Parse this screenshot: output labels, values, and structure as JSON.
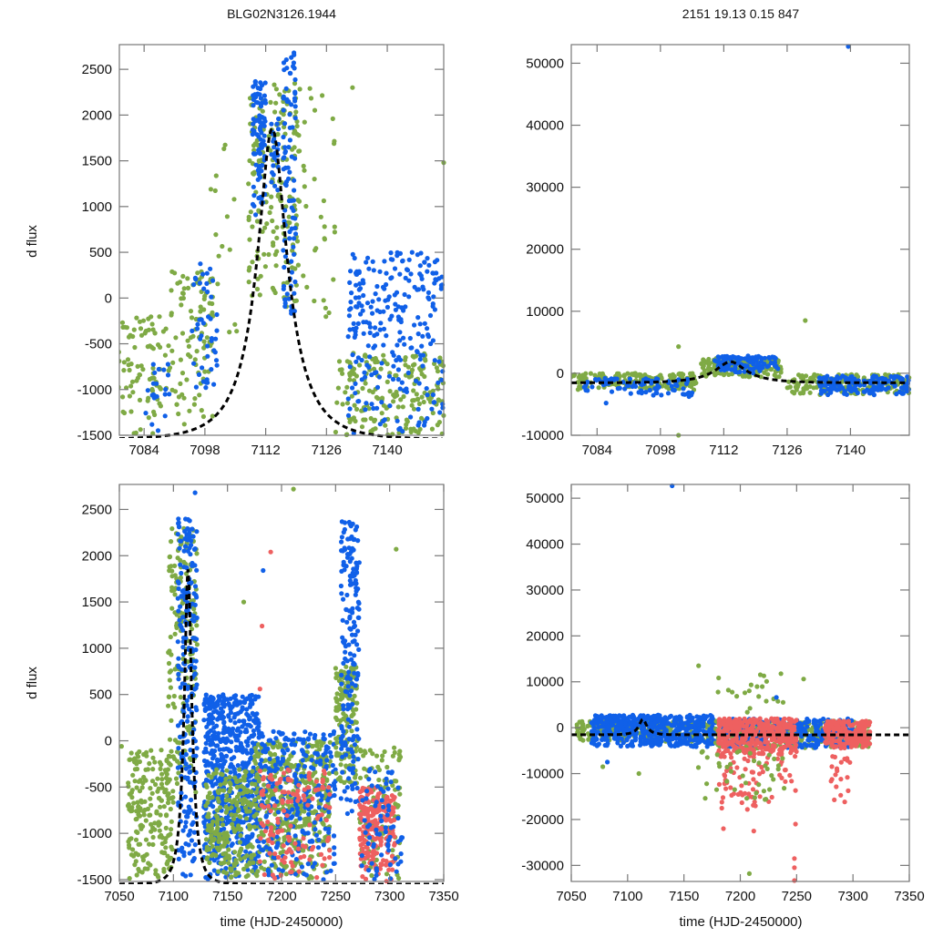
{
  "figure": {
    "title_left": "BLG02N3126.1944",
    "title_right": "2151  19.13  0.15  847"
  },
  "colors": {
    "green": "#7faa45",
    "blue": "#1060e8",
    "red": "#ee6060",
    "model": "#000000",
    "frame": "#777777"
  },
  "model": {
    "t0": 7113.5,
    "tE": 9.5,
    "u0": 0.35,
    "amp": 1850,
    "base": -1550
  },
  "chart_data": [
    {
      "id": "top-left",
      "type": "scatter",
      "title": "BLG02N3126.1944",
      "xlabel": "",
      "ylabel": "d flux",
      "xlim": [
        7078.3,
        7153
      ],
      "ylim": [
        -1500,
        2770
      ],
      "xticks": [
        7084,
        7098,
        7112,
        7126,
        7140
      ],
      "yticks": [
        -1500,
        -1000,
        -500,
        0,
        500,
        1000,
        1500,
        2000,
        2500
      ],
      "clusters": [
        {
          "series": "green",
          "x": [
            7078,
            7090
          ],
          "y": [
            -1500,
            -200
          ],
          "n": 90
        },
        {
          "series": "green",
          "x": [
            7090,
            7100
          ],
          "y": [
            -1400,
            300
          ],
          "n": 90
        },
        {
          "series": "green",
          "x": [
            7099,
            7106
          ],
          "y": [
            -700,
            1800
          ],
          "n": 20
        },
        {
          "series": "blue",
          "x": [
            7084,
            7090
          ],
          "y": [
            -1500,
            -700
          ],
          "n": 20
        },
        {
          "series": "blue",
          "x": [
            7095,
            7101
          ],
          "y": [
            -1000,
            400
          ],
          "n": 45
        },
        {
          "series": "green",
          "x": [
            7108,
            7120
          ],
          "y": [
            -100,
            2350
          ],
          "n": 180
        },
        {
          "series": "blue",
          "x": [
            7109,
            7112
          ],
          "y": [
            900,
            2400
          ],
          "n": 90
        },
        {
          "series": "blue",
          "x": [
            7113,
            7115
          ],
          "y": [
            1100,
            2000
          ],
          "n": 25
        },
        {
          "series": "blue",
          "x": [
            7116,
            7119
          ],
          "y": [
            -200,
            2700
          ],
          "n": 90
        },
        {
          "series": "green",
          "x": [
            7120,
            7128
          ],
          "y": [
            -500,
            2300
          ],
          "n": 30
        },
        {
          "series": "green",
          "x": [
            7128,
            7153
          ],
          "y": [
            -1500,
            -600
          ],
          "n": 190
        },
        {
          "series": "blue",
          "x": [
            7131,
            7153
          ],
          "y": [
            -1500,
            500
          ],
          "n": 260
        }
      ],
      "isolated_points": [
        {
          "series": "blue",
          "x": 7118.5,
          "y": 2680
        },
        {
          "series": "green",
          "x": 7132,
          "y": 2300
        },
        {
          "series": "green",
          "x": 7153,
          "y": 1480
        }
      ]
    },
    {
      "id": "top-right",
      "type": "scatter",
      "title": "2151  19.13  0.15  847",
      "xlabel": "",
      "ylabel": "",
      "xlim": [
        7078.3,
        7153
      ],
      "ylim": [
        -10000,
        53000
      ],
      "xticks": [
        7084,
        7098,
        7112,
        7126,
        7140
      ],
      "yticks": [
        -10000,
        0,
        10000,
        20000,
        30000,
        40000,
        50000
      ],
      "clusters": [
        {
          "series": "green",
          "x": [
            7078,
            7106
          ],
          "y": [
            -2700,
            0
          ],
          "n": 180
        },
        {
          "series": "blue",
          "x": [
            7081,
            7105
          ],
          "y": [
            -3800,
            -800
          ],
          "n": 90
        },
        {
          "series": "green",
          "x": [
            7107,
            7125
          ],
          "y": [
            -600,
            2400
          ],
          "n": 160
        },
        {
          "series": "blue",
          "x": [
            7110,
            7124
          ],
          "y": [
            0,
            2800
          ],
          "n": 110
        },
        {
          "series": "green",
          "x": [
            7126,
            7153
          ],
          "y": [
            -3500,
            -200
          ],
          "n": 180
        },
        {
          "series": "blue",
          "x": [
            7133,
            7153
          ],
          "y": [
            -3500,
            -400
          ],
          "n": 170
        }
      ],
      "isolated_points": [
        {
          "series": "blue",
          "x": 7139.5,
          "y": 52700
        },
        {
          "series": "green",
          "x": 7130,
          "y": 8500
        },
        {
          "series": "green",
          "x": 7102,
          "y": 4300
        },
        {
          "series": "green",
          "x": 7102,
          "y": -10000
        },
        {
          "series": "blue",
          "x": 7086,
          "y": -4800
        }
      ]
    },
    {
      "id": "bottom-left",
      "type": "scatter",
      "title": "",
      "xlabel": "time (HJD-2450000)",
      "ylabel": "d flux",
      "xlim": [
        7050,
        7350
      ],
      "ylim": [
        -1520,
        2770
      ],
      "xticks": [
        7050,
        7100,
        7150,
        7200,
        7250,
        7300,
        7350
      ],
      "yticks": [
        -1500,
        -1000,
        -500,
        0,
        500,
        1000,
        1500,
        2000,
        2500
      ],
      "clusters": [
        {
          "series": "green",
          "x": [
            7058,
            7100
          ],
          "y": [
            -1500,
            -100
          ],
          "n": 200
        },
        {
          "series": "green",
          "x": [
            7095,
            7122
          ],
          "y": [
            -600,
            2300
          ],
          "n": 170
        },
        {
          "series": "blue",
          "x": [
            7104,
            7122
          ],
          "y": [
            -1500,
            2400
          ],
          "n": 230
        },
        {
          "series": "blue",
          "x": [
            7128,
            7180
          ],
          "y": [
            -1500,
            500
          ],
          "n": 650
        },
        {
          "series": "green",
          "x": [
            7130,
            7175
          ],
          "y": [
            -1500,
            -300
          ],
          "n": 220
        },
        {
          "series": "green",
          "x": [
            7175,
            7245
          ],
          "y": [
            -1500,
            0
          ],
          "n": 450
        },
        {
          "series": "blue",
          "x": [
            7180,
            7250
          ],
          "y": [
            -1500,
            100
          ],
          "n": 280
        },
        {
          "series": "red",
          "x": [
            7180,
            7245
          ],
          "y": [
            -1520,
            -300
          ],
          "n": 130
        },
        {
          "series": "green",
          "x": [
            7250,
            7270
          ],
          "y": [
            -500,
            800
          ],
          "n": 150
        },
        {
          "series": "blue",
          "x": [
            7255,
            7272
          ],
          "y": [
            -800,
            2400
          ],
          "n": 180
        },
        {
          "series": "green",
          "x": [
            7272,
            7310
          ],
          "y": [
            -1500,
            0
          ],
          "n": 110
        },
        {
          "series": "red",
          "x": [
            7272,
            7305
          ],
          "y": [
            -1520,
            -500
          ],
          "n": 230
        },
        {
          "series": "blue",
          "x": [
            7272,
            7312
          ],
          "y": [
            -1500,
            -300
          ],
          "n": 70
        }
      ],
      "isolated_points": [
        {
          "series": "blue",
          "x": 7120,
          "y": 2680
        },
        {
          "series": "green",
          "x": 7211,
          "y": 2720
        },
        {
          "series": "green",
          "x": 7306,
          "y": 2070
        },
        {
          "series": "red",
          "x": 7190,
          "y": 2040
        },
        {
          "series": "red",
          "x": 7182,
          "y": 1240
        },
        {
          "series": "red",
          "x": 7180,
          "y": 560
        },
        {
          "series": "green",
          "x": 7052,
          "y": -60
        },
        {
          "series": "green",
          "x": 7165,
          "y": 1500
        },
        {
          "series": "blue",
          "x": 7183,
          "y": 1840
        }
      ]
    },
    {
      "id": "bottom-right",
      "type": "scatter",
      "title": "",
      "xlabel": "time (HJD-2450000)",
      "ylabel": "",
      "xlim": [
        7050,
        7350
      ],
      "ylim": [
        -33500,
        53000
      ],
      "xticks": [
        7050,
        7100,
        7150,
        7200,
        7250,
        7300,
        7350
      ],
      "yticks": [
        -30000,
        -20000,
        -10000,
        0,
        10000,
        20000,
        30000,
        40000,
        50000
      ],
      "clusters": [
        {
          "series": "green",
          "x": [
            7055,
            7178
          ],
          "y": [
            -3000,
            1500
          ],
          "n": 300
        },
        {
          "series": "blue",
          "x": [
            7068,
            7178
          ],
          "y": [
            -4200,
            2800
          ],
          "n": 520
        },
        {
          "series": "green",
          "x": [
            7178,
            7315
          ],
          "y": [
            -4500,
            1500
          ],
          "n": 320
        },
        {
          "series": "blue",
          "x": [
            7185,
            7300
          ],
          "y": [
            -4500,
            2000
          ],
          "n": 300
        },
        {
          "series": "red",
          "x": [
            7180,
            7250
          ],
          "y": [
            -6000,
            2000
          ],
          "n": 360
        },
        {
          "series": "red",
          "x": [
            7275,
            7315
          ],
          "y": [
            -4500,
            1500
          ],
          "n": 200
        },
        {
          "series": "red",
          "x": [
            7180,
            7250
          ],
          "y": [
            -18000,
            -6000
          ],
          "n": 70
        },
        {
          "series": "green",
          "x": [
            7160,
            7240
          ],
          "y": [
            -16000,
            -5000
          ],
          "n": 40
        },
        {
          "series": "red",
          "x": [
            7280,
            7300
          ],
          "y": [
            -17000,
            -6000
          ],
          "n": 20
        },
        {
          "series": "green",
          "x": [
            7170,
            7260
          ],
          "y": [
            3000,
            12000
          ],
          "n": 22
        }
      ],
      "isolated_points": [
        {
          "series": "blue",
          "x": 7139.5,
          "y": 52700
        },
        {
          "series": "red",
          "x": 7248,
          "y": -28500
        },
        {
          "series": "red",
          "x": 7248,
          "y": -30500
        },
        {
          "series": "red",
          "x": 7248,
          "y": -33300
        },
        {
          "series": "red",
          "x": 7249,
          "y": -21000
        },
        {
          "series": "green",
          "x": 7208,
          "y": -31800
        },
        {
          "series": "green",
          "x": 7163,
          "y": 13500
        },
        {
          "series": "blue",
          "x": 7232,
          "y": 6600
        },
        {
          "series": "green",
          "x": 7078,
          "y": -8500
        },
        {
          "series": "blue",
          "x": 7082,
          "y": -7500
        },
        {
          "series": "green",
          "x": 7110,
          "y": -10000
        },
        {
          "series": "red",
          "x": 7185,
          "y": -22000
        },
        {
          "series": "red",
          "x": 7212,
          "y": -22500
        }
      ]
    }
  ]
}
